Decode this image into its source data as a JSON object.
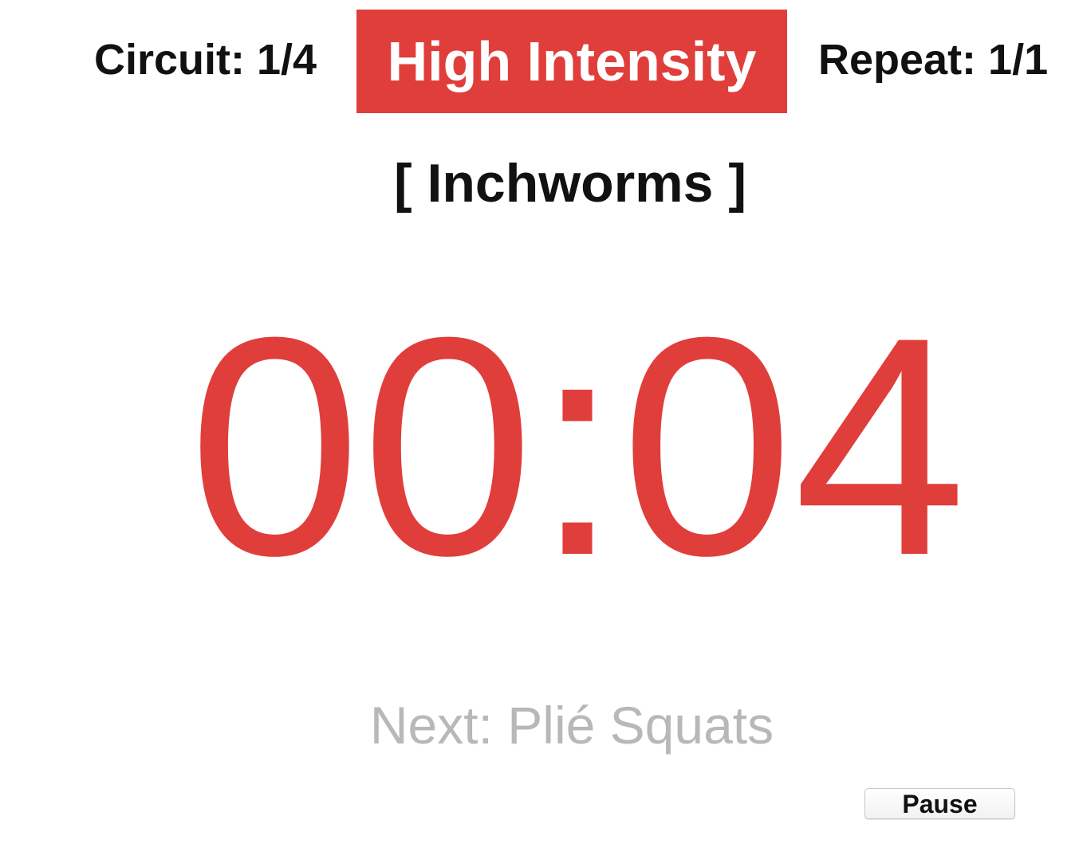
{
  "header": {
    "circuit_label": "Circuit: 1/4",
    "mode_label": "High Intensity",
    "repeat_label": "Repeat: 1/1"
  },
  "exercise": {
    "current_label": "[ Inchworms ]",
    "next_label": "Next: Plié Squats"
  },
  "timer": {
    "display": "00:04"
  },
  "controls": {
    "pause_label": "Pause"
  },
  "colors": {
    "accent": "#e03e3b",
    "text": "#111111",
    "muted": "#b8b8b8",
    "background": "#ffffff"
  }
}
